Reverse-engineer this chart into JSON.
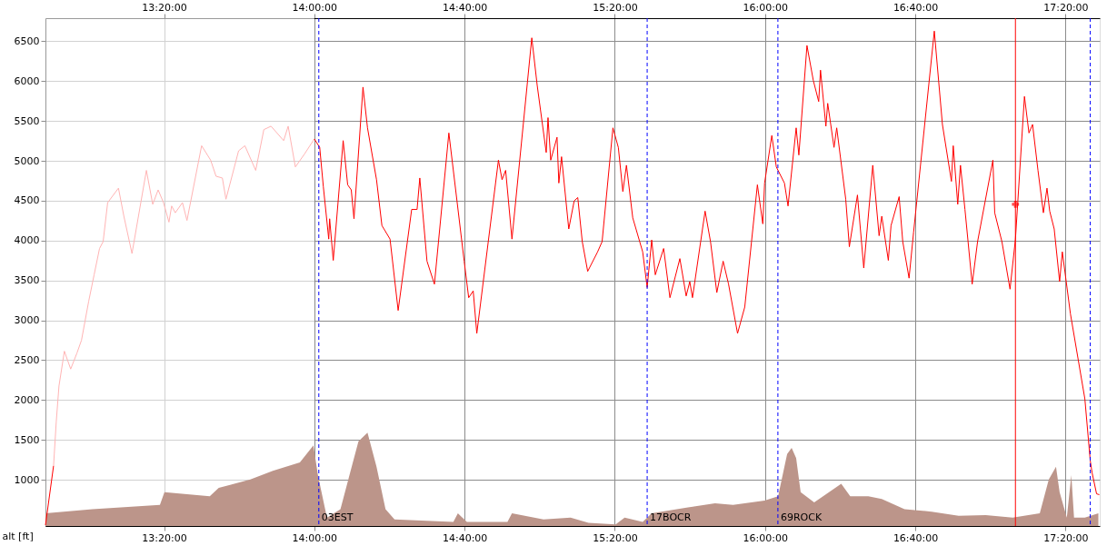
{
  "chart_data": {
    "type": "line",
    "ylabel": "alt [ft]",
    "xlim": [
      12.807,
      17.485
    ],
    "ylim": [
      420,
      6790
    ],
    "xticks": [
      {
        "value": 13.3333333333,
        "label": "13:20:00"
      },
      {
        "value": 14,
        "label": "14:00:00"
      },
      {
        "value": 14.6666666667,
        "label": "14:40:00"
      },
      {
        "value": 15.3333333333,
        "label": "15:20:00"
      },
      {
        "value": 16,
        "label": "16:00:00"
      },
      {
        "value": 16.6666666667,
        "label": "16:40:00"
      },
      {
        "value": 17.3333333333,
        "label": "17:20:00"
      }
    ],
    "x2lim": [
      12.807,
      17.485
    ],
    "x2ticks": [
      {
        "value": 13.3333333333,
        "label": "13:20:00"
      },
      {
        "value": 14,
        "label": "14:00:00"
      },
      {
        "value": 14.6666666667,
        "label": "14:40:00"
      },
      {
        "value": 15.3333333333,
        "label": "15:20:00"
      },
      {
        "value": 16,
        "label": "16:00:00"
      },
      {
        "value": 16.6666666667,
        "label": "16:40:00"
      },
      {
        "value": 17.3333333333,
        "label": "17:20:00"
      }
    ],
    "yticks": [
      1000,
      1500,
      2000,
      2500,
      3000,
      3500,
      4000,
      4500,
      5000,
      5500,
      6000,
      6500
    ],
    "grid": true,
    "line_style": "solid",
    "bands": [
      {
        "axis": "x",
        "from": 12.807,
        "to": 14.0,
        "label": null,
        "color": "#ffffff"
      }
    ],
    "ref_lines": [
      {
        "axis": "x",
        "value": 14.02,
        "label": "03EST",
        "color": "#0000ff",
        "line_style": "dashed"
      },
      {
        "axis": "x",
        "value": 15.477,
        "label": "17BOCR",
        "color": "#0000ff",
        "line_style": "dashed"
      },
      {
        "axis": "x",
        "value": 16.057,
        "label": "69ROCK",
        "color": "#0000ff",
        "line_style": "dashed"
      },
      {
        "axis": "x",
        "value": 17.443,
        "label": null,
        "color": "#0000ff",
        "line_style": "dashed"
      },
      {
        "axis": "x",
        "value": 17.111,
        "label": null,
        "color": "#ff0000",
        "line_style": "solid"
      }
    ],
    "series": [
      {
        "type": "area",
        "color": "#bc958a",
        "x": [
          12.807,
          13.015,
          13.315,
          13.335,
          13.536,
          13.576,
          13.716,
          13.816,
          13.936,
          13.996,
          14.016,
          14.056,
          14.116,
          14.156,
          14.196,
          14.236,
          14.276,
          14.316,
          14.356,
          14.617,
          14.637,
          14.677,
          14.857,
          14.877,
          15.017,
          15.137,
          15.217,
          15.337,
          15.377,
          15.457,
          15.497,
          15.658,
          15.778,
          15.858,
          15.998,
          16.058,
          16.098,
          16.118,
          16.138,
          16.158,
          16.218,
          16.338,
          16.378,
          16.458,
          16.518,
          16.619,
          16.739,
          16.859,
          16.979,
          17.099,
          17.219,
          17.259,
          17.291,
          17.307,
          17.339,
          17.359,
          17.371,
          17.419,
          17.479
        ],
        "values": [
          579,
          632,
          685,
          845,
          792,
          898,
          1005,
          1111,
          1218,
          1431,
          1058,
          525,
          632,
          1058,
          1483,
          1590,
          1164,
          632,
          504,
          472,
          579,
          472,
          472,
          579,
          504,
          525,
          461,
          440,
          525,
          472,
          579,
          653,
          706,
          685,
          738,
          792,
          1324,
          1399,
          1271,
          845,
          717,
          951,
          792,
          792,
          760,
          632,
          600,
          547,
          557,
          525,
          579,
          1005,
          1164,
          845,
          525,
          1058,
          525,
          525,
          579
        ]
      },
      {
        "color": "#ff0000",
        "x": [
          12.807,
          12.843
        ],
        "values": [
          430,
          1175
        ]
      },
      {
        "color": "#ffb4b4",
        "x": [
          12.843,
          12.855,
          12.867,
          12.891,
          12.919,
          12.947,
          12.967,
          12.999,
          13.023,
          13.047,
          13.063,
          13.083,
          13.131,
          13.155,
          13.191,
          13.255,
          13.283,
          13.307,
          13.331,
          13.355,
          13.367,
          13.383,
          13.415,
          13.435,
          13.5,
          13.54,
          13.564,
          13.592,
          13.608,
          13.664,
          13.692,
          13.74,
          13.776,
          13.808,
          13.864,
          13.884,
          13.916,
          13.956,
          14.0
        ],
        "values": [
          1175,
          1729,
          2176,
          2613,
          2389,
          2591,
          2751,
          3241,
          3571,
          3901,
          3987,
          4476,
          4658,
          4306,
          3838,
          4881,
          4455,
          4636,
          4476,
          4232,
          4434,
          4349,
          4476,
          4253,
          5190,
          5009,
          4807,
          4785,
          4519,
          5126,
          5190,
          4881,
          5392,
          5435,
          5254,
          5435,
          4924,
          5084,
          5275
        ]
      },
      {
        "color": "#ff0000",
        "x": [
          14.0,
          14.024,
          14.04,
          14.064,
          14.068,
          14.084,
          14.128,
          14.148,
          14.164,
          14.176,
          14.216,
          14.236,
          14.276,
          14.3,
          14.336,
          14.372,
          14.432,
          14.456,
          14.468,
          14.5,
          14.533,
          14.597,
          14.665,
          14.685,
          14.705,
          14.721,
          14.817,
          14.833,
          14.849,
          14.877,
          14.965,
          14.989,
          15.029,
          15.037,
          15.049,
          15.077,
          15.085,
          15.097,
          15.129,
          15.153,
          15.169,
          15.189,
          15.213,
          15.257,
          15.277,
          15.325,
          15.349,
          15.369,
          15.385,
          15.413,
          15.457,
          15.477,
          15.497,
          15.513,
          15.55,
          15.578,
          15.622,
          15.65,
          15.666,
          15.678,
          15.734,
          15.758,
          15.786,
          15.814,
          15.838,
          15.878,
          15.91,
          15.966,
          15.99,
          15.998,
          16.03,
          16.05,
          16.086,
          16.102,
          16.138,
          16.15,
          16.186,
          16.214,
          16.238,
          16.246,
          16.27,
          16.278,
          16.306,
          16.318,
          16.358,
          16.374,
          16.41,
          16.438,
          16.478,
          16.506,
          16.518,
          16.547,
          16.559,
          16.595,
          16.611,
          16.639,
          16.659,
          16.751,
          16.787,
          16.827,
          16.835,
          16.855,
          16.867,
          16.887,
          16.919,
          16.943,
          17.011,
          17.019,
          17.051,
          17.087,
          17.111,
          17.151,
          17.171,
          17.187,
          17.211,
          17.235,
          17.251,
          17.263,
          17.283,
          17.307,
          17.319,
          17.355,
          17.419,
          17.443,
          17.451,
          17.471,
          17.483
        ],
        "values": [
          5275,
          5169,
          4679,
          4019,
          4274,
          3752,
          5254,
          4700,
          4636,
          4274,
          5925,
          5414,
          4764,
          4189,
          4019,
          3124,
          4391,
          4391,
          4785,
          3742,
          3454,
          5350,
          3742,
          3284,
          3369,
          2836,
          5009,
          4764,
          4881,
          4019,
          6543,
          5946,
          5105,
          5542,
          5009,
          5296,
          4722,
          5052,
          4146,
          4498,
          4540,
          3987,
          3614,
          3859,
          3987,
          5414,
          5169,
          4615,
          4945,
          4285,
          3859,
          3412,
          4008,
          3571,
          3901,
          3284,
          3774,
          3305,
          3486,
          3284,
          4370,
          3987,
          3348,
          3742,
          3454,
          2836,
          3167,
          4700,
          4210,
          4722,
          5318,
          4924,
          4722,
          4434,
          5414,
          5073,
          6447,
          6010,
          5744,
          6138,
          5435,
          5722,
          5169,
          5414,
          4519,
          3923,
          4572,
          3656,
          4945,
          4061,
          4306,
          3752,
          4189,
          4551,
          3987,
          3529,
          4104,
          6628,
          5457,
          4743,
          5190,
          4455,
          4945,
          4391,
          3454,
          3987,
          5009,
          4349,
          3987,
          3391,
          4019,
          5808,
          5350,
          5457,
          4881,
          4349,
          4658,
          4370,
          4146,
          3486,
          3859,
          3082,
          2016,
          1239,
          1090,
          824,
          813
        ]
      },
      {
        "type": "scatter",
        "color": "#ff0000",
        "marker": "cross",
        "x": [
          17.111
        ],
        "values": [
          4455
        ]
      }
    ]
  }
}
